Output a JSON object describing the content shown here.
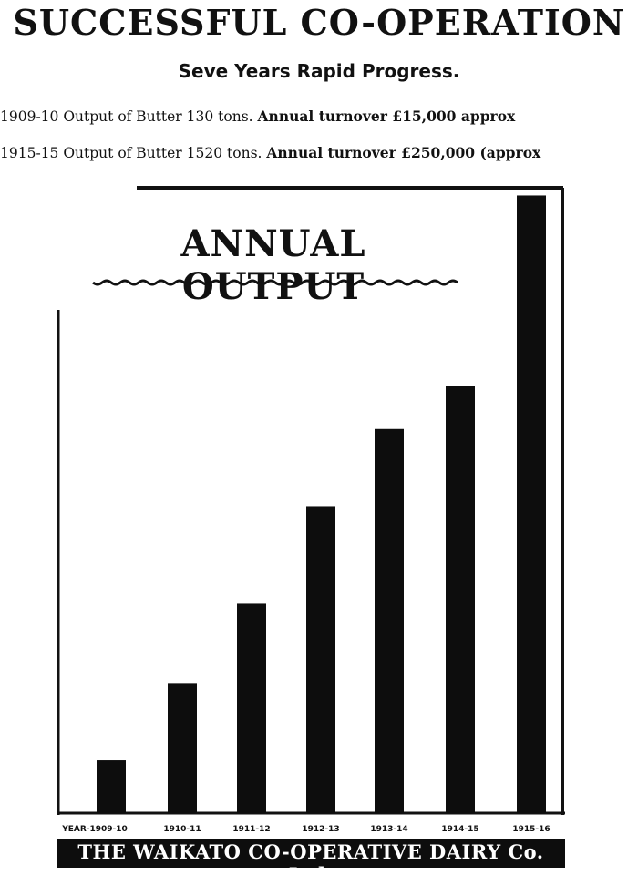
{
  "headline": "SUCCESSFUL CO-OPERATION",
  "subheadline": "Seve Years Rapid Progress.",
  "stat_lines": [
    {
      "output_text": "1909-10 Output of Butter 130 tons.",
      "turnover_text": "Annual turnover £15,000 approx"
    },
    {
      "output_text": "1915-15 Output of Butter 1520 tons.",
      "turnover_text": "Annual turnover £250,000 (approx"
    }
  ],
  "chart_data": {
    "type": "bar",
    "title": "ANNUAL OUTPUT",
    "xlabel": "",
    "ylabel": "",
    "year_prefix": "YEAR-",
    "categories": [
      "1909-10",
      "1910-11",
      "1911-12",
      "1912-13",
      "1913-14",
      "1914-15",
      "1915-16"
    ],
    "values": [
      130,
      320,
      515,
      755,
      945,
      1050,
      1520
    ],
    "ylim": [
      0,
      1530
    ],
    "grid": false,
    "bar_color": "#0d0d0d"
  },
  "footer": "THE WAIKATO CO-OPERATIVE DAIRY Co. Ltd."
}
